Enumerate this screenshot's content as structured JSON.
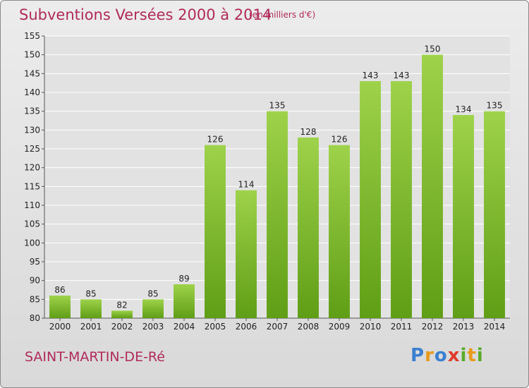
{
  "title": "Subventions Versées 2000 à 2014",
  "unit_note": "(en milliers d'€)",
  "location": "SAINT-MARTIN-DE-Ré",
  "logo": {
    "letters": [
      "P",
      "r",
      "o",
      "x",
      "i",
      "t",
      "i"
    ],
    "colors": [
      "#3a7fd0",
      "#e89a1a",
      "#3a7fd0",
      "#e03a2a",
      "#5aaa2a",
      "#e89a1a",
      "#5aaa2a"
    ]
  },
  "colors": {
    "title": "#b02a5a",
    "bar_light": "#9ed24a",
    "bar_dark": "#5f9e16",
    "grid": "#ffffff",
    "axis_text": "#222222"
  },
  "chart_data": {
    "type": "bar",
    "title": "Subventions Versées 2000 à 2014",
    "subtitle": "(en milliers d'€)",
    "categories": [
      "2000",
      "2001",
      "2002",
      "2003",
      "2004",
      "2005",
      "2006",
      "2007",
      "2008",
      "2009",
      "2010",
      "2011",
      "2012",
      "2013",
      "2014"
    ],
    "values": [
      86,
      85,
      82,
      85,
      89,
      126,
      114,
      135,
      128,
      126,
      143,
      143,
      150,
      134,
      135
    ],
    "value_labels": [
      "86",
      "85",
      "82",
      "85",
      "89",
      "126",
      "114",
      "135",
      "128",
      "126",
      "143",
      "143",
      "150",
      "134",
      "135"
    ],
    "ylim": [
      80,
      155
    ],
    "yticks": [
      "80",
      "85",
      "90",
      "95",
      "100",
      "105",
      "110",
      "115",
      "120",
      "125",
      "130",
      "135",
      "140",
      "145",
      "150",
      "155"
    ],
    "grid": true,
    "legend": "none"
  }
}
